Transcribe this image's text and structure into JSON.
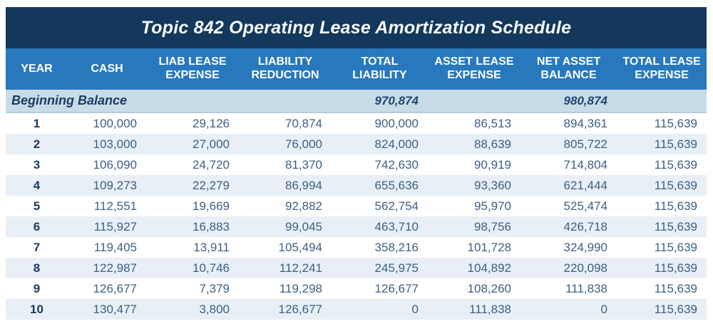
{
  "colors": {
    "title_bar_bg": "#14375c",
    "header_bg": "#2878bd",
    "beginning_row_bg": "#c8dce8",
    "stripe_row_bg": "#e8eff6",
    "year_text": "#1c3c64",
    "value_text": "#3d5f84",
    "header_text": "#ffffff"
  },
  "chart_data": {
    "type": "table",
    "title": "Topic 842 Operating Lease Amortization Schedule",
    "columns": [
      {
        "key": "year",
        "label": "YEAR"
      },
      {
        "key": "cash",
        "label": "CASH"
      },
      {
        "key": "liab_lease_expense",
        "label": "LIAB LEASE EXPENSE"
      },
      {
        "key": "liability_reduction",
        "label": "LIABILITY REDUCTION"
      },
      {
        "key": "total_liability",
        "label": "TOTAL LIABILITY"
      },
      {
        "key": "asset_lease_expense",
        "label": "ASSET LEASE EXPENSE"
      },
      {
        "key": "net_asset_balance",
        "label": "NET ASSET BALANCE"
      },
      {
        "key": "total_lease_expense",
        "label": "TOTAL LEASE EXPENSE"
      }
    ],
    "beginning_balance": {
      "label": "Beginning Balance",
      "total_liability": "970,874",
      "net_asset_balance": "980,874"
    },
    "rows": [
      {
        "year": "1",
        "cash": "100,000",
        "liab_lease_expense": "29,126",
        "liability_reduction": "70,874",
        "total_liability": "900,000",
        "asset_lease_expense": "86,513",
        "net_asset_balance": "894,361",
        "total_lease_expense": "115,639"
      },
      {
        "year": "2",
        "cash": "103,000",
        "liab_lease_expense": "27,000",
        "liability_reduction": "76,000",
        "total_liability": "824,000",
        "asset_lease_expense": "88,639",
        "net_asset_balance": "805,722",
        "total_lease_expense": "115,639"
      },
      {
        "year": "3",
        "cash": "106,090",
        "liab_lease_expense": "24,720",
        "liability_reduction": "81,370",
        "total_liability": "742,630",
        "asset_lease_expense": "90,919",
        "net_asset_balance": "714,804",
        "total_lease_expense": "115,639"
      },
      {
        "year": "4",
        "cash": "109,273",
        "liab_lease_expense": "22,279",
        "liability_reduction": "86,994",
        "total_liability": "655,636",
        "asset_lease_expense": "93,360",
        "net_asset_balance": "621,444",
        "total_lease_expense": "115,639"
      },
      {
        "year": "5",
        "cash": "112,551",
        "liab_lease_expense": "19,669",
        "liability_reduction": "92,882",
        "total_liability": "562,754",
        "asset_lease_expense": "95,970",
        "net_asset_balance": "525,474",
        "total_lease_expense": "115,639"
      },
      {
        "year": "6",
        "cash": "115,927",
        "liab_lease_expense": "16,883",
        "liability_reduction": "99,045",
        "total_liability": "463,710",
        "asset_lease_expense": "98,756",
        "net_asset_balance": "426,718",
        "total_lease_expense": "115,639"
      },
      {
        "year": "7",
        "cash": "119,405",
        "liab_lease_expense": "13,911",
        "liability_reduction": "105,494",
        "total_liability": "358,216",
        "asset_lease_expense": "101,728",
        "net_asset_balance": "324,990",
        "total_lease_expense": "115,639"
      },
      {
        "year": "8",
        "cash": "122,987",
        "liab_lease_expense": "10,746",
        "liability_reduction": "112,241",
        "total_liability": "245,975",
        "asset_lease_expense": "104,892",
        "net_asset_balance": "220,098",
        "total_lease_expense": "115,639"
      },
      {
        "year": "9",
        "cash": "126,677",
        "liab_lease_expense": "7,379",
        "liability_reduction": "119,298",
        "total_liability": "126,677",
        "asset_lease_expense": "108,260",
        "net_asset_balance": "111,838",
        "total_lease_expense": "115,639"
      },
      {
        "year": "10",
        "cash": "130,477",
        "liab_lease_expense": "3,800",
        "liability_reduction": "126,677",
        "total_liability": "0",
        "asset_lease_expense": "111,838",
        "net_asset_balance": "0",
        "total_lease_expense": "115,639"
      }
    ]
  }
}
